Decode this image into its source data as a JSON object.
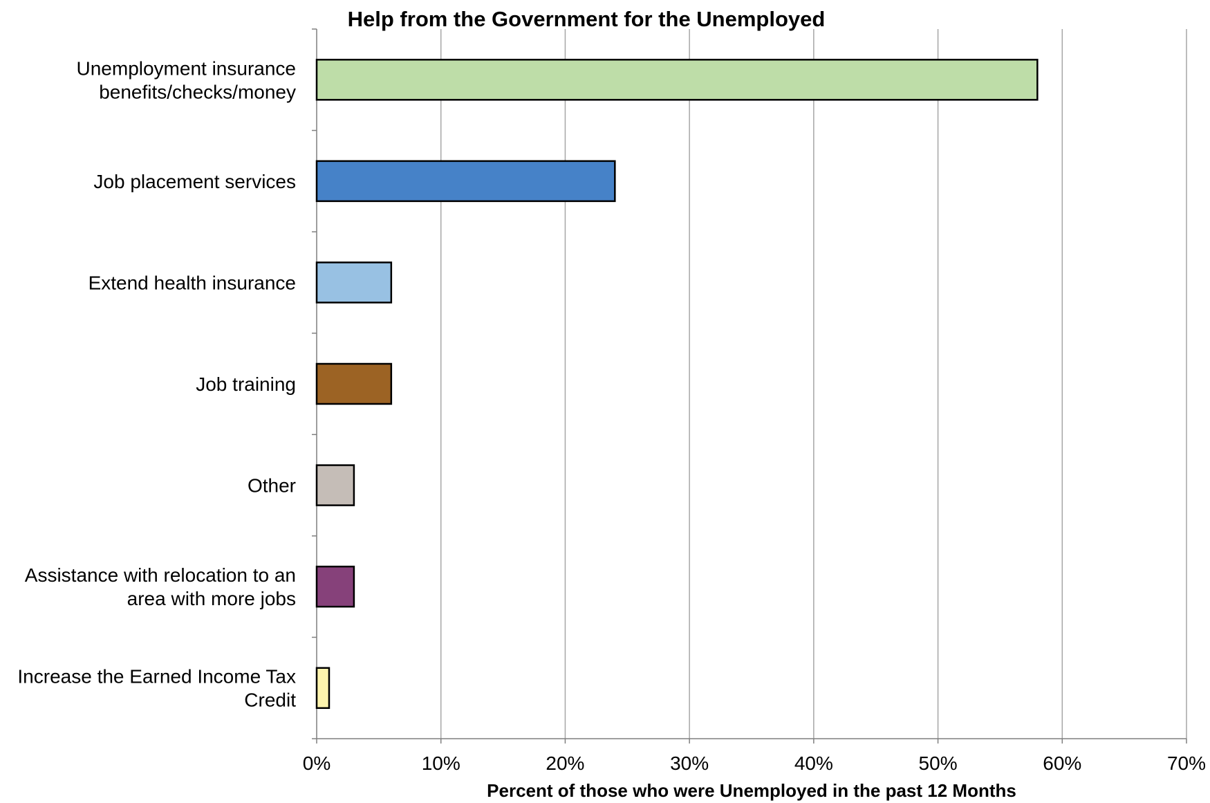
{
  "chart_data": {
    "type": "bar",
    "orientation": "horizontal",
    "title": "Help from the Government for the Unemployed",
    "xlabel": "Percent of those who were Unemployed in the past 12 Months",
    "ylabel": "",
    "xlim": [
      0,
      70
    ],
    "x_ticks": [
      "0%",
      "10%",
      "20%",
      "30%",
      "40%",
      "50%",
      "60%",
      "70%"
    ],
    "grid": "vertical",
    "legend": "none",
    "categories": [
      [
        "Unemployment insurance",
        "benefits/checks/money"
      ],
      [
        "Job placement services"
      ],
      [
        "Extend health insurance"
      ],
      [
        "Job training"
      ],
      [
        "Other"
      ],
      [
        "Assistance with relocation to an",
        "area with more jobs"
      ],
      [
        "Increase the Earned Income Tax",
        "Credit"
      ]
    ],
    "values": [
      58,
      24,
      6,
      6,
      3,
      3,
      1
    ],
    "colors": [
      "#bedda8",
      "#4682c8",
      "#98c1e3",
      "#9c6324",
      "#c5bdb7",
      "#86417a",
      "#fdf4ae"
    ]
  }
}
